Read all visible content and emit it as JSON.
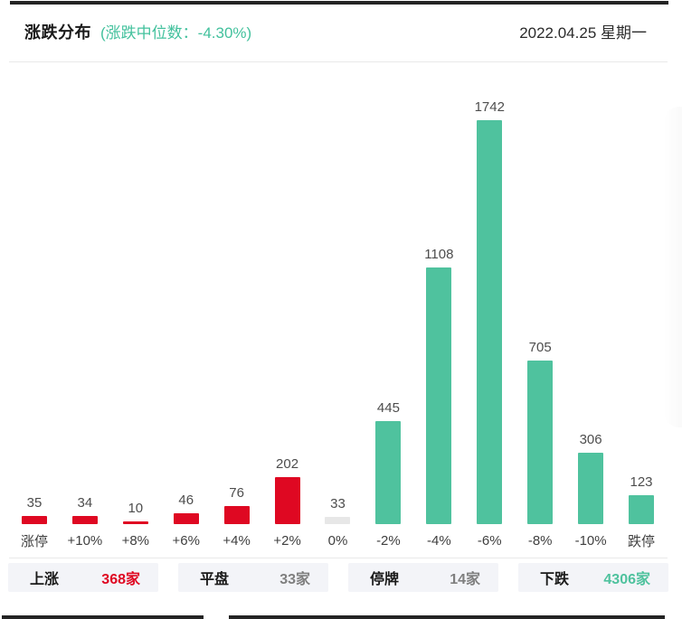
{
  "header": {
    "title": "涨跌分布",
    "subtitle": "(涨跌中位数：-4.30%)",
    "date": "2022.04.25 星期一"
  },
  "chart_data": {
    "type": "bar",
    "title": "涨跌分布",
    "categories": [
      "涨停",
      "+10%",
      "+8%",
      "+6%",
      "+4%",
      "+2%",
      "0%",
      "-2%",
      "-4%",
      "-6%",
      "-8%",
      "-10%",
      "跌停"
    ],
    "values": [
      35,
      34,
      10,
      46,
      76,
      202,
      33,
      445,
      1108,
      1742,
      705,
      306,
      123
    ],
    "bar_colors": [
      "#df0822",
      "#df0822",
      "#df0822",
      "#df0822",
      "#df0822",
      "#df0822",
      "#e7e7e7",
      "#4fc29e",
      "#4fc29e",
      "#4fc29e",
      "#4fc29e",
      "#4fc29e",
      "#4fc29e"
    ],
    "ylim": [
      0,
      1742
    ],
    "xlabel": "",
    "ylabel": "",
    "grid": false,
    "legend": "none",
    "value_labels": "above-bars"
  },
  "summary": [
    {
      "label": "上涨",
      "value": "368家",
      "color": "#df0822"
    },
    {
      "label": "平盘",
      "value": "33家",
      "color": "#7f7f7f"
    },
    {
      "label": "停牌",
      "value": "14家",
      "color": "#7f7f7f"
    },
    {
      "label": "下跌",
      "value": "4306家",
      "color": "#4fc29e"
    }
  ],
  "colors": {
    "up_red": "#df0822",
    "down_green": "#4fc29e",
    "flat_gray": "#e7e7e7",
    "accent_teal_text": "#43c19d",
    "top_bar": "#232323",
    "divider": "#e9e9e9",
    "summary_box_bg": "#f3f4f8"
  }
}
